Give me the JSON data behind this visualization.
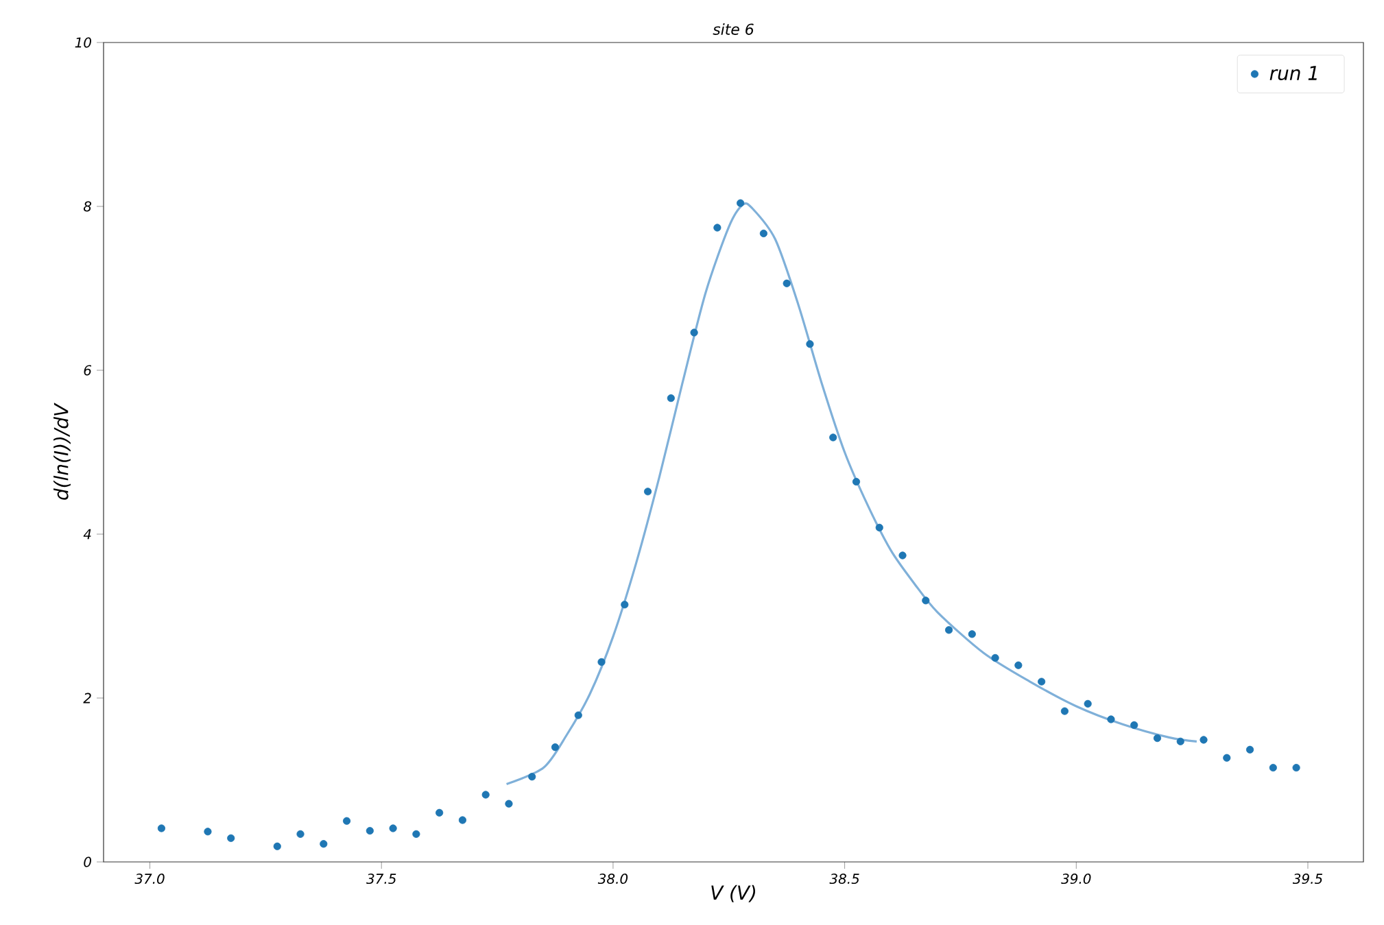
{
  "chart_data": {
    "type": "scatter",
    "title": "site 6",
    "xlabel": "V (V)",
    "ylabel": "d(ln(I))/dV",
    "xlim": [
      36.9,
      39.62
    ],
    "ylim": [
      0,
      10
    ],
    "xticks": [
      {
        "value": 37.0,
        "label": "37.0"
      },
      {
        "value": 37.5,
        "label": "37.5"
      },
      {
        "value": 38.0,
        "label": "38.0"
      },
      {
        "value": 38.5,
        "label": "38.5"
      },
      {
        "value": 39.0,
        "label": "39.0"
      },
      {
        "value": 39.5,
        "label": "39.5"
      }
    ],
    "yticks": [
      0,
      2,
      4,
      6,
      8,
      10
    ],
    "legend": "top right",
    "grid": false,
    "series": [
      {
        "name": "run 1",
        "marker": "circle",
        "color": "#1f77b4",
        "x": [
          37.025,
          37.125,
          37.175,
          37.275,
          37.325,
          37.375,
          37.425,
          37.475,
          37.525,
          37.575,
          37.625,
          37.675,
          37.725,
          37.775,
          37.825,
          37.875,
          37.925,
          37.975,
          38.025,
          38.075,
          38.125,
          38.175,
          38.225,
          38.275,
          38.325,
          38.375,
          38.425,
          38.475,
          38.525,
          38.575,
          38.625,
          38.675,
          38.725,
          38.775,
          38.825,
          38.875,
          38.925,
          38.975,
          39.025,
          39.075,
          39.125,
          39.175,
          39.225,
          39.275,
          39.325,
          39.375,
          39.425,
          39.475
        ],
        "values": [
          0.41,
          0.37,
          0.29,
          0.19,
          0.34,
          0.22,
          0.5,
          0.38,
          0.41,
          0.34,
          0.6,
          0.51,
          0.82,
          0.71,
          1.04,
          1.4,
          1.79,
          2.44,
          3.14,
          4.52,
          5.66,
          6.46,
          7.74,
          8.04,
          7.67,
          7.06,
          6.32,
          5.18,
          4.64,
          4.08,
          3.74,
          3.19,
          2.83,
          2.78,
          2.49,
          2.4,
          2.2,
          1.84,
          1.93,
          1.74,
          1.67,
          1.51,
          1.47,
          1.49,
          1.27,
          1.37,
          1.15,
          1.15
        ]
      },
      {
        "type": "line",
        "marker": "none",
        "color": "#7fb0d9",
        "line_style": "solid",
        "x": [
          37.77,
          37.85,
          37.9,
          37.95,
          38.0,
          38.05,
          38.1,
          38.15,
          38.2,
          38.25,
          38.28,
          38.3,
          38.35,
          38.4,
          38.45,
          38.5,
          38.55,
          38.6,
          38.65,
          38.7,
          38.8,
          38.9,
          39.0,
          39.1,
          39.2,
          39.26
        ],
        "values": [
          0.95,
          1.15,
          1.55,
          2.05,
          2.75,
          3.65,
          4.7,
          5.85,
          6.95,
          7.75,
          8.02,
          7.98,
          7.6,
          6.8,
          5.85,
          5.0,
          4.35,
          3.8,
          3.4,
          3.05,
          2.55,
          2.2,
          1.9,
          1.68,
          1.52,
          1.47
        ]
      }
    ]
  }
}
